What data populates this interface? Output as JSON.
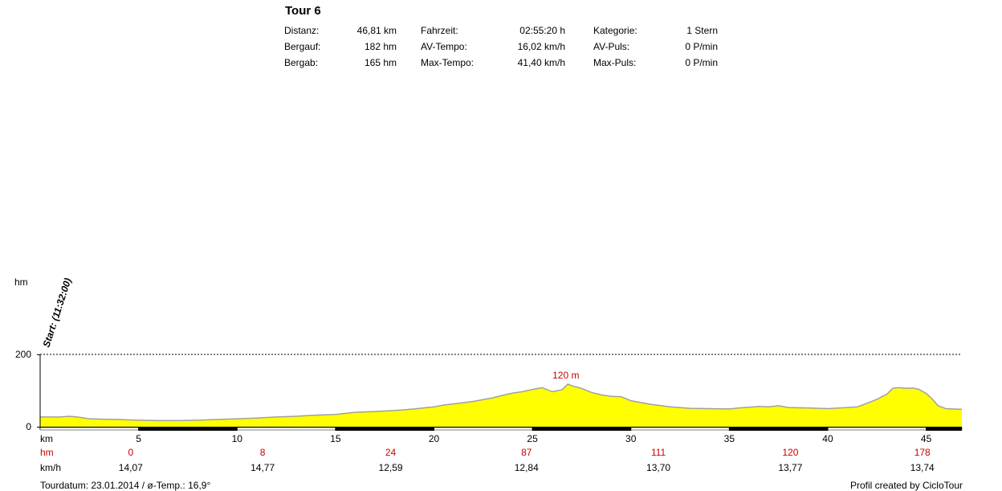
{
  "header": {
    "title": "Tour 6",
    "stats": [
      {
        "label": "Distanz:",
        "value": "46,81 km",
        "label2": "Fahrzeit:",
        "value2": "02:55:20 h",
        "label3": "Kategorie:",
        "value3": "1 Stern"
      },
      {
        "label": "Bergauf:",
        "value": "182 hm",
        "label2": "AV-Tempo:",
        "value2": "16,02 km/h",
        "label3": "AV-Puls:",
        "value3": "0 P/min"
      },
      {
        "label": "Bergab:",
        "value": "165 hm",
        "label2": "Max-Tempo:",
        "value2": "41,40 km/h",
        "label3": "Max-Puls:",
        "value3": "0 P/min"
      }
    ]
  },
  "chart_data": {
    "type": "area",
    "ylabel": "hm",
    "ylim": [
      0,
      200
    ],
    "yticks": [
      0,
      200
    ],
    "grid": "dotted line at 200",
    "xlim": [
      0,
      46.81
    ],
    "x_axis_label": "km",
    "xticks": [
      5,
      10,
      15,
      20,
      25,
      30,
      35,
      40,
      45
    ],
    "start_annotation": "Start: (11:32:00)",
    "peak_label": "120 m",
    "peak_km": 26.7,
    "fill_color": "#ffff00",
    "line_color": "#a0a0a0",
    "elevation": {
      "x": [
        0,
        1,
        1.5,
        2,
        2.5,
        3,
        4,
        4.5,
        5,
        6,
        7,
        8,
        9,
        10,
        11,
        12,
        13,
        14,
        15,
        16,
        17,
        18,
        19,
        20,
        20.5,
        21,
        22,
        22.5,
        23,
        23.5,
        24,
        24.5,
        25,
        25.5,
        26,
        26.5,
        26.8,
        27,
        27.5,
        28,
        28.5,
        29,
        29.5,
        30,
        31,
        32,
        33,
        34,
        35,
        35.5,
        36,
        36.5,
        37,
        37.5,
        38,
        39,
        40,
        41,
        41.5,
        42,
        42.5,
        43,
        43.3,
        43.6,
        44,
        44.3,
        44.6,
        45,
        45.3,
        45.6,
        46,
        46.81
      ],
      "y": [
        27,
        27,
        29,
        26,
        22,
        21,
        20,
        19,
        18,
        17,
        17,
        18,
        20,
        22,
        24,
        27,
        29,
        32,
        34,
        40,
        42,
        45,
        49,
        55,
        60,
        63,
        70,
        75,
        80,
        87,
        93,
        97,
        103,
        108,
        97,
        102,
        118,
        113,
        106,
        95,
        88,
        84,
        83,
        72,
        62,
        55,
        51,
        50,
        49,
        52,
        54,
        56,
        55,
        58,
        53,
        52,
        50,
        53,
        55,
        65,
        76,
        90,
        106,
        108,
        106,
        107,
        104,
        92,
        77,
        58,
        50,
        48
      ]
    },
    "rows": [
      {
        "label": "hm",
        "color": "#cc0000",
        "positions": [
          4.6,
          11.3,
          17.8,
          24.7,
          31.4,
          38.1,
          44.8
        ],
        "values": [
          "0",
          "8",
          "24",
          "87",
          "111",
          "120",
          "178"
        ]
      },
      {
        "label": "km/h",
        "color": "#000000",
        "positions": [
          4.6,
          11.3,
          17.8,
          24.7,
          31.4,
          38.1,
          44.8
        ],
        "values": [
          "14,07",
          "14,77",
          "12,59",
          "12,84",
          "13,70",
          "13,77",
          "13,74"
        ]
      }
    ]
  },
  "footer": {
    "left": "Tourdatum: 23.01.2014  /  ø-Temp.: 16,9°",
    "right": "Profil created by CicloTour"
  }
}
